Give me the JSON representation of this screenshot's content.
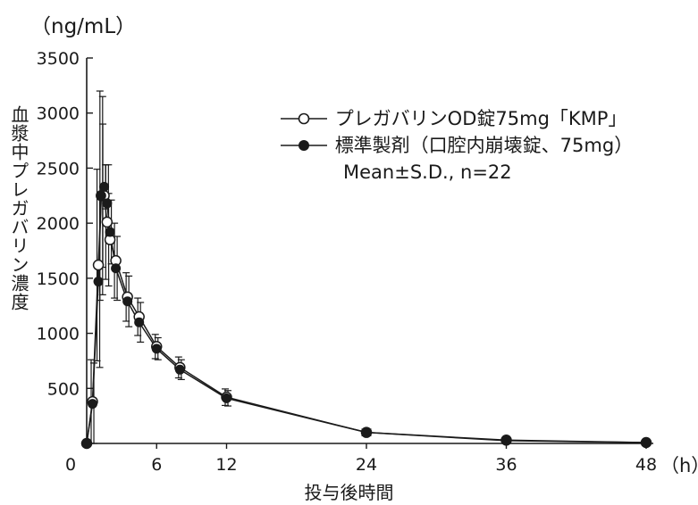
{
  "chart_data": {
    "type": "line",
    "y_unit": "（ng/mL）",
    "ylabel": "血漿中プレガバリン濃度",
    "xlabel": "投与後時間",
    "x_unit": "（h）",
    "xlim": [
      0,
      48
    ],
    "ylim": [
      0,
      3500
    ],
    "x_ticks": [
      0,
      6,
      12,
      24,
      36,
      48
    ],
    "y_ticks": [
      500,
      1000,
      1500,
      2000,
      2500,
      3000,
      3500
    ],
    "legend_position": "top-right",
    "note": "Mean±S.D., n=22",
    "series": [
      {
        "name": "プレガバリンOD錠75mg「KMP」",
        "marker": "open-circle",
        "x": [
          0,
          0.5,
          1,
          1.25,
          1.5,
          1.75,
          2,
          2.5,
          3.5,
          4.5,
          6,
          8,
          12,
          24,
          36,
          48
        ],
        "y": [
          0,
          380,
          1620,
          2250,
          2250,
          2010,
          1850,
          1660,
          1330,
          1150,
          880,
          690,
          420,
          100,
          30,
          8
        ],
        "sd": [
          0,
          380,
          870,
          950,
          650,
          520,
          420,
          340,
          220,
          170,
          110,
          95,
          75,
          30,
          15,
          5
        ]
      },
      {
        "name": "標準製剤（口腔内崩壊錠、75mg）",
        "marker": "filled-circle",
        "x": [
          0,
          0.5,
          1,
          1.25,
          1.5,
          1.75,
          2,
          2.5,
          3.5,
          4.5,
          6,
          8,
          12,
          24,
          36,
          48
        ],
        "y": [
          0,
          360,
          1470,
          2250,
          2330,
          2180,
          1920,
          1590,
          1290,
          1100,
          860,
          670,
          410,
          100,
          25,
          8
        ],
        "sd": [
          0,
          370,
          780,
          900,
          200,
          350,
          290,
          290,
          230,
          180,
          100,
          90,
          70,
          30,
          15,
          5
        ]
      }
    ]
  }
}
